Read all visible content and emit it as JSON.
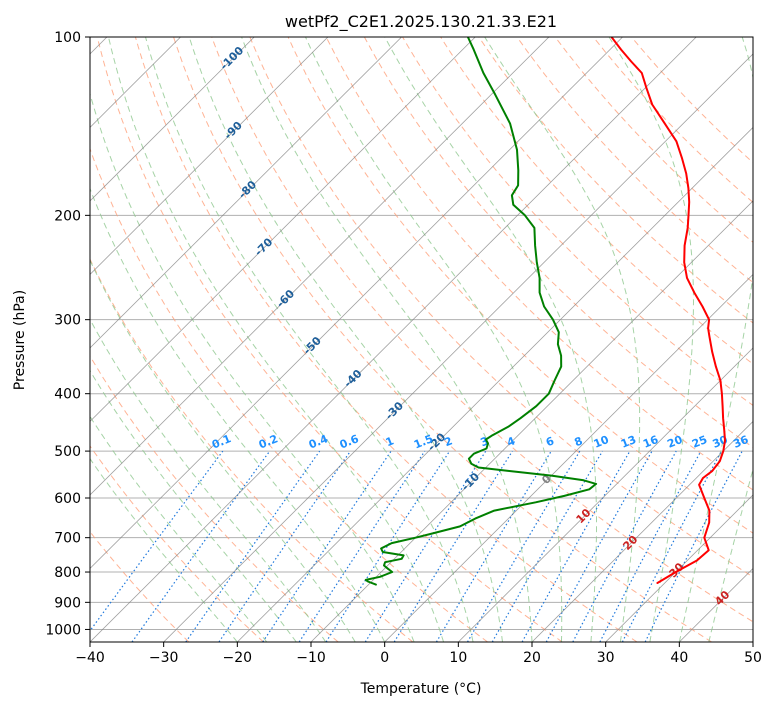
{
  "chart_data": {
    "type": "line",
    "title": "wetPf2_C2E1.2025.130.21.33.E21",
    "xlabel": "Temperature (°C)",
    "ylabel": "Pressure (hPa)",
    "xlim": [
      -40,
      50
    ],
    "ylim": [
      1050,
      100
    ],
    "y_scale": "log",
    "skew": 35,
    "grid": true,
    "x_ticks": [
      "−40",
      "−30",
      "−20",
      "−10",
      "0",
      "10",
      "20",
      "30",
      "40",
      "50"
    ],
    "y_ticks": [
      "100",
      "200",
      "300",
      "400",
      "500",
      "600",
      "700",
      "800",
      "900",
      "1000"
    ],
    "series": [
      {
        "key": "temperature",
        "color": "#ff0000",
        "points": [
          [
            835,
            29
          ],
          [
            800,
            30
          ],
          [
            765,
            31.3
          ],
          [
            735,
            31.5
          ],
          [
            700,
            29.2
          ],
          [
            660,
            27.8
          ],
          [
            630,
            26.2
          ],
          [
            600,
            23.8
          ],
          [
            570,
            21.3
          ],
          [
            555,
            20.9
          ],
          [
            540,
            21.2
          ],
          [
            520,
            20.9
          ],
          [
            500,
            20.0
          ],
          [
            480,
            18.8
          ],
          [
            460,
            17.2
          ],
          [
            440,
            15.5
          ],
          [
            420,
            13.8
          ],
          [
            400,
            12.0
          ],
          [
            380,
            10.0
          ],
          [
            360,
            7.5
          ],
          [
            340,
            5.0
          ],
          [
            320,
            2.5
          ],
          [
            310,
            1.2
          ],
          [
            300,
            0.2
          ],
          [
            285,
            -2.5
          ],
          [
            270,
            -5.5
          ],
          [
            255,
            -8.5
          ],
          [
            240,
            -11.0
          ],
          [
            225,
            -13.2
          ],
          [
            210,
            -15.2
          ],
          [
            200,
            -16.8
          ],
          [
            190,
            -18.5
          ],
          [
            180,
            -20.5
          ],
          [
            170,
            -22.8
          ],
          [
            160,
            -25.5
          ],
          [
            150,
            -28.5
          ],
          [
            140,
            -32.5
          ],
          [
            130,
            -36.8
          ],
          [
            122,
            -39.8
          ],
          [
            115,
            -42.5
          ],
          [
            110,
            -45.5
          ],
          [
            105,
            -48.5
          ],
          [
            100,
            -51.5
          ]
        ]
      },
      {
        "key": "dewpoint",
        "color": "#008000",
        "points": [
          [
            840,
            -9.0
          ],
          [
            830,
            -10.5
          ],
          [
            825,
            -11.0
          ],
          [
            815,
            -9.5
          ],
          [
            800,
            -8.5
          ],
          [
            790,
            -9.5
          ],
          [
            780,
            -10.5
          ],
          [
            770,
            -10.8
          ],
          [
            760,
            -9.0
          ],
          [
            750,
            -9.2
          ],
          [
            740,
            -12.5
          ],
          [
            730,
            -13.2
          ],
          [
            715,
            -12.5
          ],
          [
            700,
            -10.0
          ],
          [
            690,
            -8.5
          ],
          [
            670,
            -5.5
          ],
          [
            650,
            -4.5
          ],
          [
            630,
            -3.0
          ],
          [
            610,
            1.5
          ],
          [
            595,
            4.5
          ],
          [
            580,
            7.0
          ],
          [
            568,
            7.2
          ],
          [
            560,
            5.0
          ],
          [
            550,
            0.0
          ],
          [
            540,
            -6.5
          ],
          [
            533,
            -11.0
          ],
          [
            525,
            -12.5
          ],
          [
            515,
            -13.5
          ],
          [
            505,
            -13.5
          ],
          [
            495,
            -12.5
          ],
          [
            485,
            -13.0
          ],
          [
            478,
            -13.8
          ],
          [
            470,
            -13.5
          ],
          [
            455,
            -12.5
          ],
          [
            440,
            -12.0
          ],
          [
            420,
            -11.5
          ],
          [
            400,
            -11.5
          ],
          [
            380,
            -12.5
          ],
          [
            360,
            -13.5
          ],
          [
            345,
            -15.0
          ],
          [
            330,
            -17.0
          ],
          [
            315,
            -18.5
          ],
          [
            300,
            -21.0
          ],
          [
            285,
            -24.0
          ],
          [
            270,
            -26.5
          ],
          [
            255,
            -28.5
          ],
          [
            240,
            -31.0
          ],
          [
            225,
            -33.5
          ],
          [
            210,
            -36.0
          ],
          [
            200,
            -39.0
          ],
          [
            192,
            -42.0
          ],
          [
            185,
            -43.5
          ],
          [
            178,
            -44.0
          ],
          [
            168,
            -46.0
          ],
          [
            155,
            -49.0
          ],
          [
            140,
            -53.5
          ],
          [
            125,
            -59.5
          ],
          [
            115,
            -64.0
          ],
          [
            105,
            -68.5
          ],
          [
            100,
            -71.0
          ]
        ]
      }
    ],
    "isotherm_labels": [
      "-100",
      "-90",
      "-80",
      "-70",
      "-60",
      "-50",
      "-40",
      "-30",
      "-20",
      "-10",
      "0",
      "10",
      "20",
      "30",
      "40"
    ],
    "mixing_ratio_labels": [
      "0.1",
      "0.2",
      "0.4",
      "0.6",
      "1",
      "1.5",
      "2",
      "3",
      "4",
      "6",
      "8",
      "10",
      "13",
      "16",
      "20",
      "25",
      "30",
      "36"
    ],
    "colors": {
      "temperature": "#ff0000",
      "dewpoint": "#008000",
      "isotherm": "#808080",
      "dry_adiabat": "#ffa07a",
      "moist_adiabat": "#90c890",
      "mixing_ratio": "#1e78dc",
      "isotherm_label_neg": "#1f5f9a",
      "isotherm_label_pos": "#cc2222",
      "isotherm_label_zero": "#808080",
      "mixing_label": "#1e90ff",
      "grid": "#b0b0b0"
    }
  }
}
